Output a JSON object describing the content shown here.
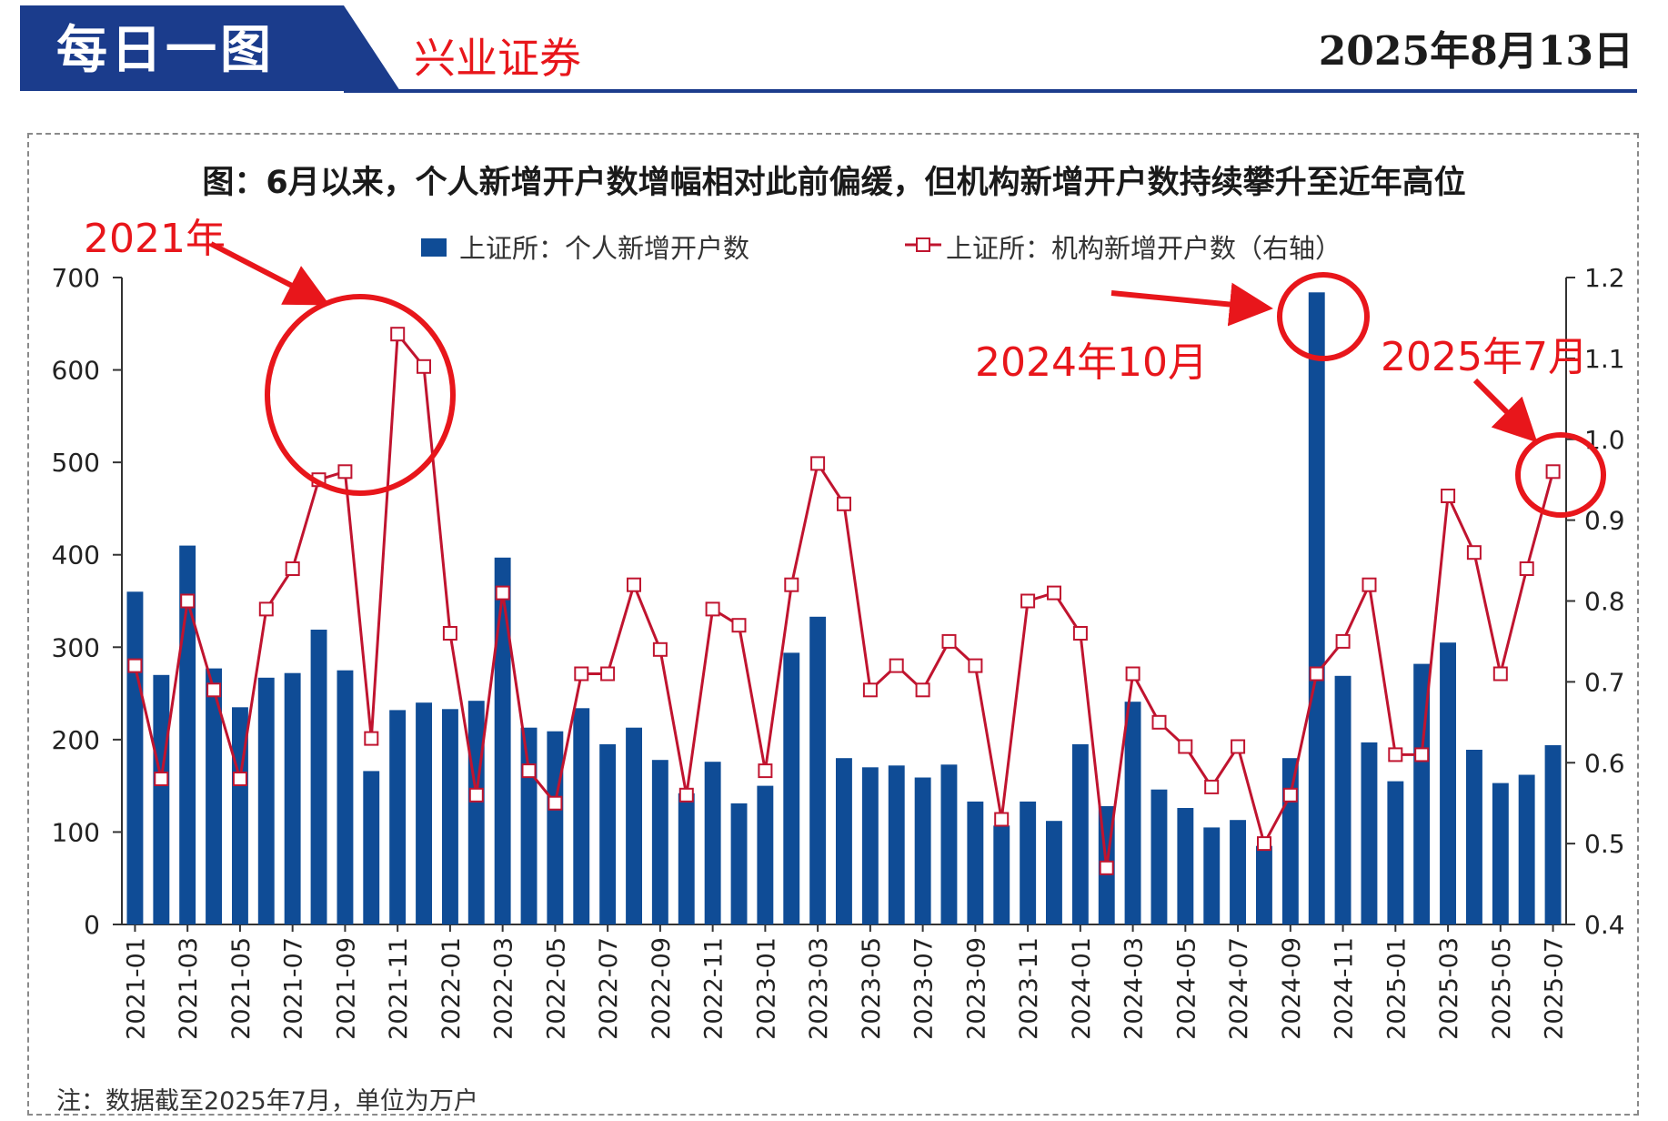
{
  "header": {
    "title": "每日一图",
    "brand": "兴业证券",
    "date": "2025年8月13日"
  },
  "colors": {
    "banner": "#1b3c8c",
    "bar": "#0f4c96",
    "line": "#c0142f",
    "annotation": "#e8161b"
  },
  "chart_data": {
    "type": "bar",
    "title": "图：6月以来，个人新增开户数增幅相对此前偏缓，但机构新增开户数持续攀升至近年高位",
    "categories": [
      "2021-01",
      "2021-02",
      "2021-03",
      "2021-04",
      "2021-05",
      "2021-06",
      "2021-07",
      "2021-08",
      "2021-09",
      "2021-10",
      "2021-11",
      "2021-12",
      "2022-01",
      "2022-02",
      "2022-03",
      "2022-04",
      "2022-05",
      "2022-06",
      "2022-07",
      "2022-08",
      "2022-09",
      "2022-10",
      "2022-11",
      "2022-12",
      "2023-01",
      "2023-02",
      "2023-03",
      "2023-04",
      "2023-05",
      "2023-06",
      "2023-07",
      "2023-08",
      "2023-09",
      "2023-10",
      "2023-11",
      "2023-12",
      "2024-01",
      "2024-02",
      "2024-03",
      "2024-04",
      "2024-05",
      "2024-06",
      "2024-07",
      "2024-08",
      "2024-09",
      "2024-10",
      "2024-11",
      "2024-12",
      "2025-01",
      "2025-02",
      "2025-03",
      "2025-04",
      "2025-05",
      "2025-06",
      "2025-07"
    ],
    "x_tick_labels": [
      "2021-01",
      "2021-03",
      "2021-05",
      "2021-07",
      "2021-09",
      "2021-11",
      "2022-01",
      "2022-03",
      "2022-05",
      "2022-07",
      "2022-09",
      "2022-11",
      "2023-01",
      "2023-03",
      "2023-05",
      "2023-07",
      "2023-09",
      "2023-11",
      "2024-01",
      "2024-03",
      "2024-05",
      "2024-07",
      "2024-09",
      "2024-11",
      "2025-01",
      "2025-03",
      "2025-05",
      "2025-07"
    ],
    "series": [
      {
        "name": "上证所：个人新增开户数",
        "type": "bar",
        "axis": "left",
        "values": [
          360,
          270,
          410,
          277,
          235,
          267,
          272,
          319,
          275,
          166,
          232,
          240,
          233,
          242,
          397,
          213,
          209,
          234,
          195,
          213,
          178,
          142,
          176,
          131,
          150,
          294,
          333,
          180,
          170,
          172,
          159,
          173,
          133,
          107,
          133,
          112,
          195,
          128,
          241,
          146,
          126,
          105,
          113,
          85,
          180,
          684,
          269,
          197,
          155,
          282,
          305,
          189,
          153,
          162,
          194
        ]
      },
      {
        "name": "上证所：机构新增开户数（右轴）",
        "type": "line",
        "axis": "right",
        "values": [
          0.72,
          0.58,
          0.8,
          0.69,
          0.58,
          0.79,
          0.84,
          0.95,
          0.96,
          0.63,
          1.13,
          1.09,
          0.76,
          0.56,
          0.81,
          0.59,
          0.55,
          0.71,
          0.71,
          0.82,
          0.74,
          0.56,
          0.79,
          0.77,
          0.59,
          0.82,
          0.97,
          0.92,
          0.69,
          0.72,
          0.69,
          0.75,
          0.72,
          0.53,
          0.8,
          0.81,
          0.76,
          0.47,
          0.71,
          0.65,
          0.62,
          0.57,
          0.62,
          0.5,
          0.56,
          0.71,
          0.75,
          0.82,
          0.61,
          0.61,
          0.93,
          0.86,
          0.71,
          0.84,
          0.96
        ]
      }
    ],
    "legend_labels": [
      "上证所：个人新增开户数",
      "上证所：机构新增开户数（右轴）"
    ],
    "y_left": {
      "min": 0,
      "max": 700,
      "ticks": [
        0,
        100,
        200,
        300,
        400,
        500,
        600,
        700
      ]
    },
    "y_right": {
      "min": 0.4,
      "max": 1.2,
      "ticks": [
        "0.4",
        "0.5",
        "0.6",
        "0.7",
        "0.8",
        "0.9",
        "1.0",
        "1.1",
        "1.2"
      ]
    },
    "grid": false,
    "legend_position": "top",
    "note": "注：数据截至2025年7月，单位为万户",
    "annotations": [
      {
        "label": "2021年",
        "target_index": 9
      },
      {
        "label": "2024年10月",
        "target_index": 45
      },
      {
        "label": "2025年7月",
        "target_index": 54
      }
    ]
  }
}
